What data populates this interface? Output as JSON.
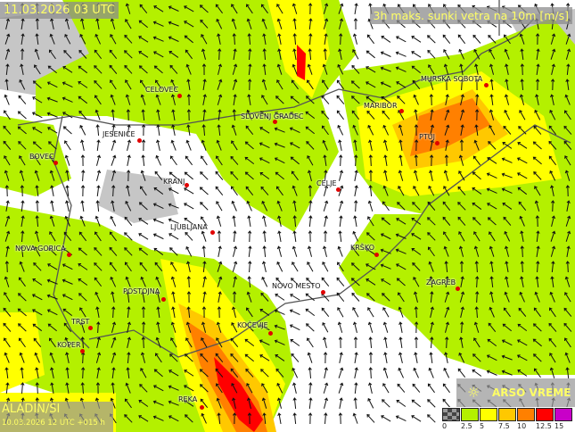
{
  "header": {
    "valid_time": "11.03.2026 03 UTC",
    "parameter": "3h maks. sunki vetra na 10m [m/s]"
  },
  "model": {
    "name": "ALADIN/SI",
    "run": "10.03.2026 12 UTC +015 h"
  },
  "brand": {
    "icon": "sun-icon",
    "name": "ARSO VREME"
  },
  "legend": {
    "labels": [
      "0",
      "2.5",
      "5",
      "7.5",
      "10",
      "12.5",
      "15"
    ],
    "colors": [
      "#808080",
      "#b4f000",
      "#ffff00",
      "#ffc800",
      "#ff8000",
      "#ff0000",
      "#c800c8"
    ]
  },
  "cities": [
    {
      "name": "CELOVEC"
    },
    {
      "name": "JESENICE"
    },
    {
      "name": "BOVEC"
    },
    {
      "name": "KRANJ"
    },
    {
      "name": "SLOVENJ GRADEC"
    },
    {
      "name": "MURSKA SOBOTA"
    },
    {
      "name": "MARIBOR"
    },
    {
      "name": "PTUJ"
    },
    {
      "name": "CELJE"
    },
    {
      "name": "LJUBLJANA"
    },
    {
      "name": "NOVA GORICA"
    },
    {
      "name": "KRŠKO"
    },
    {
      "name": "ZAGREB"
    },
    {
      "name": "NOVO MESTO"
    },
    {
      "name": "POSTOJNA"
    },
    {
      "name": "TRST"
    },
    {
      "name": "KOPER"
    },
    {
      "name": "KOČEVJE"
    },
    {
      "name": "REKA"
    }
  ]
}
